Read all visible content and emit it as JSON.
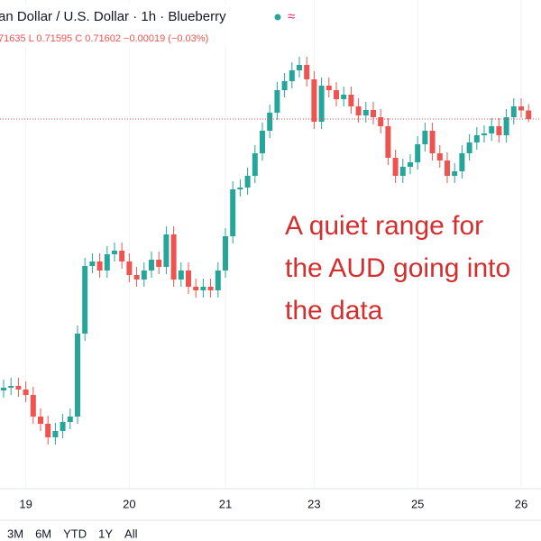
{
  "chart_data": {
    "type": "candlestick",
    "title": "an Dollar / U.S. Dollar · 1h · Blueberry",
    "subtitle": "71635 L 0.71595 C 0.71602 −0.00019 (−0.03%)",
    "annotation": [
      "A quiet range for",
      "the AUD going into",
      "the data"
    ],
    "categories": [
      null,
      null,
      null,
      "19",
      null,
      null,
      null,
      null,
      null,
      null,
      null,
      null,
      null,
      null,
      null,
      null,
      null,
      "20",
      null,
      null,
      null,
      null,
      null,
      null,
      null,
      null,
      null,
      null,
      null,
      null,
      "21",
      null,
      null,
      null,
      null,
      null,
      null,
      null,
      null,
      null,
      null,
      null,
      "23",
      null,
      null,
      null,
      null,
      null,
      null,
      null,
      null,
      null,
      null,
      null,
      null,
      null,
      "25",
      null,
      null,
      null,
      null,
      null,
      null,
      null,
      null,
      null,
      null,
      null,
      null,
      null,
      "26",
      null
    ],
    "open": [
      0.71,
      0.71006,
      0.7101,
      0.71002,
      0.7099,
      0.70942,
      0.70926,
      0.70896,
      0.7091,
      0.7093,
      0.70942,
      0.71126,
      0.71276,
      0.71286,
      0.71266,
      0.71302,
      0.7131,
      0.71286,
      0.71256,
      0.71246,
      0.71266,
      0.7129,
      0.71274,
      0.71346,
      0.71246,
      0.71266,
      0.7123,
      0.71222,
      0.7123,
      0.71222,
      0.71266,
      0.71342,
      0.71446,
      0.7145,
      0.71476,
      0.71526,
      0.71576,
      0.71616,
      0.71666,
      0.71686,
      0.7171,
      0.71722,
      0.7169,
      0.71596,
      0.71676,
      0.71666,
      0.71646,
      0.71656,
      0.7163,
      0.7161,
      0.71622,
      0.71606,
      0.71586,
      0.71516,
      0.71476,
      0.71496,
      0.71506,
      0.71546,
      0.71576,
      0.71526,
      0.7151,
      0.71476,
      0.71486,
      0.71526,
      0.7155,
      0.71566,
      0.7157,
      0.71586,
      0.71566,
      0.71606,
      0.7163,
      0.71621
    ],
    "high": [
      0.71024,
      0.71028,
      0.71028,
      0.7102,
      0.71008,
      0.7096,
      0.70944,
      0.70928,
      0.70948,
      0.7096,
      0.71144,
      0.71294,
      0.71304,
      0.71304,
      0.7132,
      0.71328,
      0.71328,
      0.71304,
      0.71274,
      0.71284,
      0.71308,
      0.71308,
      0.71364,
      0.71364,
      0.71284,
      0.71284,
      0.71248,
      0.71248,
      0.71248,
      0.71284,
      0.7136,
      0.71464,
      0.71468,
      0.71494,
      0.71544,
      0.71594,
      0.71634,
      0.71684,
      0.71704,
      0.71728,
      0.7174,
      0.7174,
      0.71708,
      0.71694,
      0.71694,
      0.71684,
      0.71674,
      0.71674,
      0.71648,
      0.7164,
      0.7164,
      0.71624,
      0.71604,
      0.71534,
      0.71514,
      0.71524,
      0.71564,
      0.71594,
      0.71594,
      0.71544,
      0.71528,
      0.71504,
      0.71544,
      0.71568,
      0.71584,
      0.71588,
      0.71604,
      0.71604,
      0.71624,
      0.71648,
      0.71648,
      0.71635
    ],
    "low": [
      0.70984,
      0.7099,
      0.70986,
      0.70974,
      0.70926,
      0.7091,
      0.7088,
      0.7088,
      0.70894,
      0.70914,
      0.70926,
      0.7111,
      0.7126,
      0.7125,
      0.7125,
      0.71286,
      0.7127,
      0.7124,
      0.7123,
      0.7123,
      0.7125,
      0.71258,
      0.71258,
      0.7123,
      0.7123,
      0.71214,
      0.71206,
      0.71206,
      0.71206,
      0.71206,
      0.7125,
      0.71326,
      0.7143,
      0.71434,
      0.7146,
      0.7151,
      0.7156,
      0.716,
      0.7165,
      0.7167,
      0.71694,
      0.71674,
      0.7158,
      0.7158,
      0.7165,
      0.7163,
      0.7163,
      0.71614,
      0.71594,
      0.71594,
      0.7159,
      0.7157,
      0.715,
      0.7146,
      0.7146,
      0.7148,
      0.7149,
      0.7153,
      0.7151,
      0.71494,
      0.7146,
      0.7146,
      0.7147,
      0.7151,
      0.71534,
      0.7155,
      0.71554,
      0.7155,
      0.7155,
      0.7159,
      0.71605,
      0.71595
    ],
    "close": [
      0.71006,
      0.7101,
      0.71002,
      0.7099,
      0.70942,
      0.70926,
      0.70896,
      0.7091,
      0.7093,
      0.70942,
      0.71126,
      0.71276,
      0.71286,
      0.71266,
      0.71302,
      0.7131,
      0.71286,
      0.71256,
      0.71246,
      0.71266,
      0.7129,
      0.71274,
      0.71346,
      0.71246,
      0.71266,
      0.7123,
      0.71222,
      0.7123,
      0.71222,
      0.71266,
      0.71342,
      0.71446,
      0.7145,
      0.71476,
      0.71526,
      0.71576,
      0.71616,
      0.71666,
      0.71686,
      0.7171,
      0.71722,
      0.7169,
      0.71596,
      0.71676,
      0.71666,
      0.71646,
      0.71656,
      0.7163,
      0.7161,
      0.71622,
      0.71606,
      0.71586,
      0.71516,
      0.71476,
      0.71496,
      0.71506,
      0.71546,
      0.71576,
      0.71526,
      0.7151,
      0.71476,
      0.71486,
      0.71526,
      0.7155,
      0.71566,
      0.7157,
      0.71586,
      0.71566,
      0.71606,
      0.7163,
      0.71621,
      0.71602
    ],
    "up_color": "#26a69a",
    "down_color": "#ef5350",
    "ylim": [
      0.70786,
      0.71866
    ],
    "range_buttons": [
      "3M",
      "6M",
      "YTD",
      "1Y",
      "All"
    ]
  }
}
